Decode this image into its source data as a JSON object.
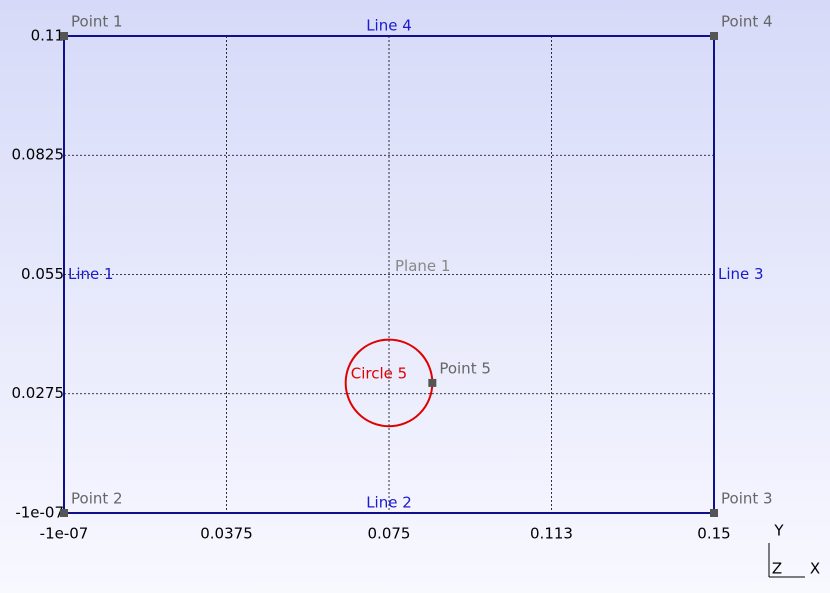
{
  "geometry": {
    "xlim": [
      -1e-07,
      0.15
    ],
    "ylim": [
      -1e-07,
      0.11
    ],
    "xticks": [
      {
        "value": -1e-07,
        "label": "-1e-07"
      },
      0.0375,
      0.075,
      {
        "value": 0.1125,
        "label": "0.113"
      },
      0.15
    ],
    "yticks": [
      {
        "value": -1e-07,
        "label": "-1e-07"
      },
      0.0275,
      0.055,
      0.0825,
      0.11
    ],
    "points": [
      {
        "label": "Point 1",
        "x": -1e-07,
        "y": 0.11
      },
      {
        "label": "Point 2",
        "x": -1e-07,
        "y": -1e-07
      },
      {
        "label": "Point 3",
        "x": 0.15,
        "y": -1e-07
      },
      {
        "label": "Point 4",
        "x": 0.15,
        "y": 0.11
      },
      {
        "label": "Point 5",
        "x": 0.085,
        "y": 0.03
      }
    ],
    "lines": [
      {
        "label": "Line 1",
        "from": 0,
        "to": 1
      },
      {
        "label": "Line 2",
        "from": 1,
        "to": 2
      },
      {
        "label": "Line 3",
        "from": 2,
        "to": 3
      },
      {
        "label": "Line 4",
        "from": 3,
        "to": 0
      }
    ],
    "plane": {
      "label": "Plane 1"
    },
    "circle": {
      "label": "Circle 5",
      "cx": 0.075,
      "cy": 0.03,
      "r": 0.01
    },
    "triad": [
      "Y",
      "Z",
      "X"
    ]
  }
}
